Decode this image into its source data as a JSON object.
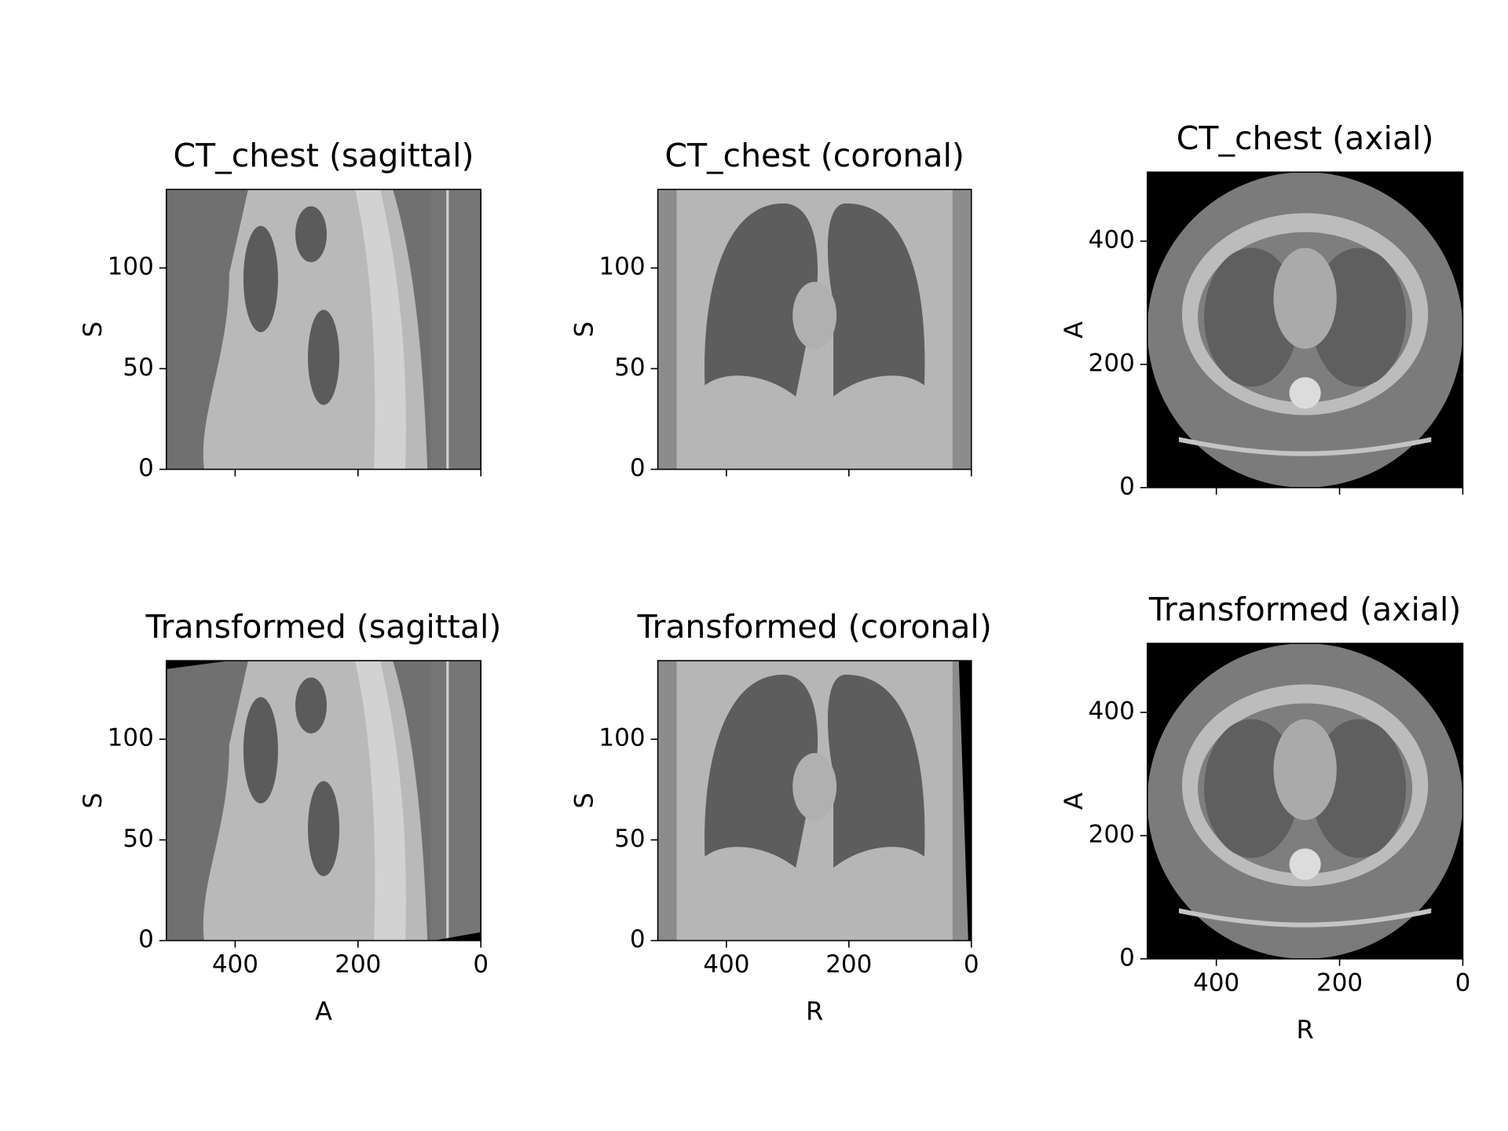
{
  "chart_data": [
    {
      "type": "image",
      "title": "CT_chest (sagittal)",
      "ylabel": "S",
      "xlim": [
        512,
        0
      ],
      "ylim": [
        0,
        139
      ],
      "xticks": [
        400,
        200,
        0
      ],
      "yticks": [
        0,
        50,
        100
      ],
      "show_xticklabels": false
    },
    {
      "type": "image",
      "title": "CT_chest (coronal)",
      "ylabel": "S",
      "xlim": [
        512,
        0
      ],
      "ylim": [
        0,
        139
      ],
      "xticks": [
        400,
        200,
        0
      ],
      "yticks": [
        0,
        50,
        100
      ],
      "show_xticklabels": false
    },
    {
      "type": "image",
      "title": "CT_chest (axial)",
      "ylabel": "A",
      "xlim": [
        512,
        0
      ],
      "ylim": [
        0,
        512
      ],
      "xticks": [
        400,
        200,
        0
      ],
      "yticks": [
        0,
        200,
        400
      ],
      "show_xticklabels": false
    },
    {
      "type": "image",
      "title": "Transformed (sagittal)",
      "xlabel": "A",
      "ylabel": "S",
      "xlim": [
        512,
        0
      ],
      "ylim": [
        0,
        139
      ],
      "xticks": [
        400,
        200,
        0
      ],
      "yticks": [
        0,
        50,
        100
      ],
      "show_xticklabels": true
    },
    {
      "type": "image",
      "title": "Transformed (coronal)",
      "xlabel": "R",
      "ylabel": "S",
      "xlim": [
        512,
        0
      ],
      "ylim": [
        0,
        139
      ],
      "xticks": [
        400,
        200,
        0
      ],
      "yticks": [
        0,
        50,
        100
      ],
      "show_xticklabels": true
    },
    {
      "type": "image",
      "title": "Transformed (axial)",
      "xlabel": "R",
      "ylabel": "A",
      "xlim": [
        512,
        0
      ],
      "ylim": [
        0,
        512
      ],
      "xticks": [
        400,
        200,
        0
      ],
      "yticks": [
        0,
        200,
        400
      ],
      "show_xticklabels": true
    }
  ]
}
